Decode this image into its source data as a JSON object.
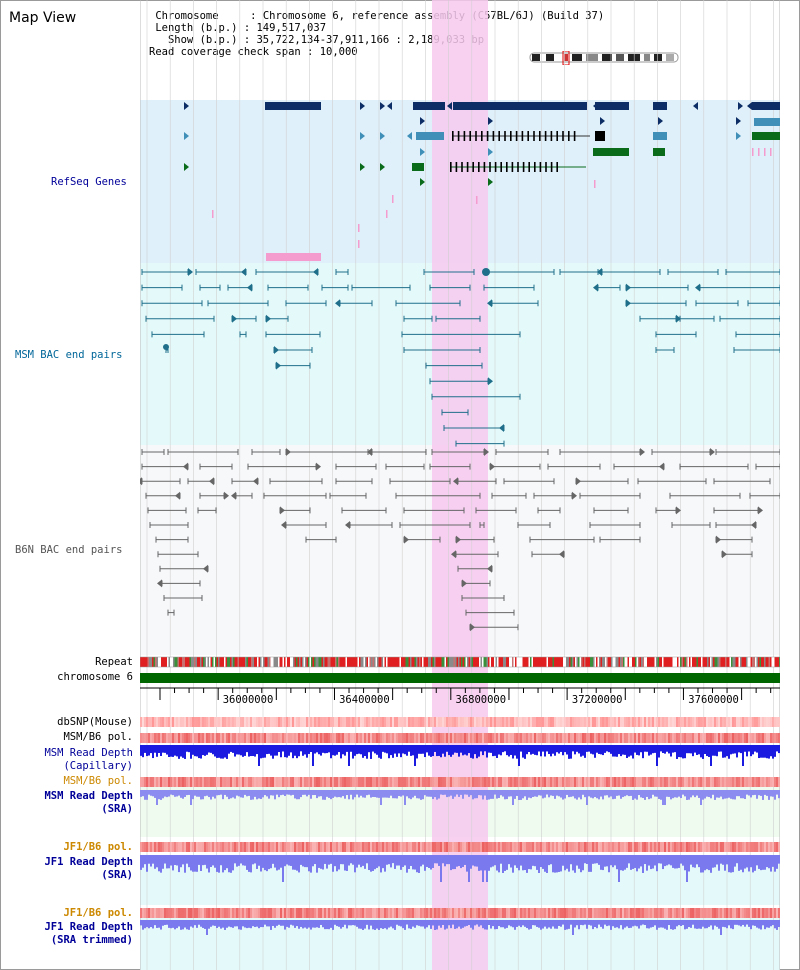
{
  "app": {
    "title": "Map View"
  },
  "info": {
    "chromosome_label": "Chromosome",
    "chromosome_value": "Chromosome 6, reference assembly (C57BL/6J) (Build 37)",
    "length_label": "Length (b.p.)",
    "length_value": "149,517,037",
    "show_label": "Show (b.p.)",
    "show_value": "35,722,134-37,911,166 : 2,189,033 bp",
    "coverage_label": "Read coverage check span",
    "coverage_value": "10,000"
  },
  "tracks": {
    "refseq": {
      "label": "RefSeq Genes",
      "color": "#000099"
    },
    "msm_bac": {
      "label": "MSM BAC end pairs",
      "color": "#006699"
    },
    "b6n_bac": {
      "label": "B6N BAC end pairs",
      "color": "#555555"
    },
    "repeat": {
      "label": "Repeat"
    },
    "chromosome": {
      "label": "chromosome 6",
      "color": "#006600"
    },
    "dbsnp": {
      "label": "dbSNP(Mouse)"
    },
    "msm_b6_pol_1": {
      "label": "MSM/B6 pol."
    },
    "msm_depth_cap": {
      "label_1": "MSM Read Depth",
      "label_2": "(Capillary)",
      "color": "#000099"
    },
    "msm_b6_pol_2": {
      "label": "MSM/B6 pol.",
      "color": "#cc8800"
    },
    "msm_depth_sra": {
      "label_1": "MSM Read Depth",
      "label_2": "(SRA)",
      "color": "#000099"
    },
    "jf1_b6_pol_1": {
      "label": "JF1/B6 pol.",
      "color": "#cc8800"
    },
    "jf1_depth_sra": {
      "label_1": "JF1 Read Depth",
      "label_2": "(SRA)",
      "color": "#000099"
    },
    "jf1_b6_pol_2": {
      "label": "JF1/B6 pol.",
      "color": "#cc8800"
    },
    "jf1_depth_trim": {
      "label_1": "JF1 Read Depth",
      "label_2": "(SRA trimmed)",
      "color": "#000099"
    }
  },
  "axis": {
    "ticks": [
      "36000000",
      "36400000",
      "36800000",
      "37200000",
      "37600000"
    ]
  },
  "colors": {
    "highlight": "#f7c9ee",
    "refseq_bg": "#dff0fa",
    "bac_bg": "#e4fafa",
    "gene_dark": "#0d2d66",
    "gene_mid": "#3f8fb8",
    "gene_green": "#0a6b1a",
    "gene_pink": "#f59ccf"
  }
}
